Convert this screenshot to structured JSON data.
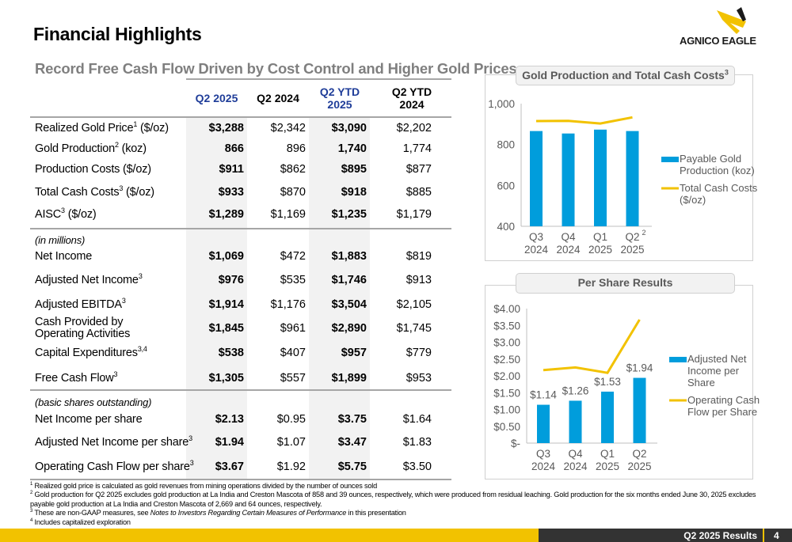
{
  "header": {
    "title": "Financial Highlights",
    "subtitle": "Record Free Cash Flow Driven by Cost Control and Higher Gold Prices",
    "logo_text": "AGNICO EAGLE"
  },
  "colors": {
    "accent_blue": "#1f3d99",
    "bar_blue": "#009ddc",
    "line_gold": "#f2c200",
    "dark": "#333333"
  },
  "table": {
    "columns": [
      "Q2 2025",
      "Q2 2024",
      "Q2 YTD 2025",
      "Q2 YTD 2024"
    ],
    "rows": [
      {
        "label": "Realized Gold Price",
        "sup": "1",
        "unit": " ($/oz)",
        "values": [
          "$3,288",
          "$2,342",
          "$3,090",
          "$2,202"
        ]
      },
      {
        "label": "Gold Production",
        "sup": "2",
        "unit": " (koz)",
        "values": [
          "866",
          "896",
          "1,740",
          "1,774"
        ]
      },
      {
        "label": "Production Costs ($/oz)",
        "sup": "",
        "unit": "",
        "values": [
          "$911",
          "$862",
          "$895",
          "$877"
        ]
      },
      {
        "label": "Total Cash Costs",
        "sup": "3",
        "unit": " ($/oz)",
        "values": [
          "$933",
          "$870",
          "$918",
          "$885"
        ]
      },
      {
        "label": "AISC",
        "sup": "3",
        "unit": " ($/oz)",
        "values": [
          "$1,289",
          "$1,169",
          "$1,235",
          "$1,179"
        ]
      },
      {
        "section": "(in millions)"
      },
      {
        "label": "Net Income",
        "sup": "",
        "unit": "",
        "values": [
          "$1,069",
          "$472",
          "$1,883",
          "$819"
        ]
      },
      {
        "label": "Adjusted Net Income",
        "sup": "3",
        "unit": "",
        "values": [
          "$976",
          "$535",
          "$1,746",
          "$913"
        ]
      },
      {
        "label": "Adjusted EBITDA",
        "sup": "3",
        "unit": "",
        "values": [
          "$1,914",
          "$1,176",
          "$3,504",
          "$2,105"
        ]
      },
      {
        "label": "Cash Provided by Operating Activities",
        "sup": "",
        "unit": "",
        "values": [
          "$1,845",
          "$961",
          "$2,890",
          "$1,745"
        ]
      },
      {
        "label": "Capital Expenditures",
        "sup": "3,4",
        "unit": "",
        "values": [
          "$538",
          "$407",
          "$957",
          "$779"
        ]
      },
      {
        "label": "Free Cash Flow",
        "sup": "3",
        "unit": "",
        "values": [
          "$1,305",
          "$557",
          "$1,899",
          "$953"
        ]
      },
      {
        "section": "(basic shares outstanding)"
      },
      {
        "label": "Net Income per share",
        "sup": "",
        "unit": "",
        "values": [
          "$2.13",
          "$0.95",
          "$3.75",
          "$1.64"
        ]
      },
      {
        "label": "Adjusted Net Income per share",
        "sup": "3",
        "unit": "",
        "values": [
          "$1.94",
          "$1.07",
          "$3.47",
          "$1.83"
        ]
      },
      {
        "label": "Operating Cash Flow per share",
        "sup": "3",
        "unit": "",
        "values": [
          "$3.67",
          "$1.92",
          "$5.75",
          "$3.50"
        ]
      }
    ]
  },
  "chart_data": [
    {
      "type": "bar",
      "title": "Gold Production and Total Cash Costs",
      "title_sup": "3",
      "categories": [
        "Q3 2024",
        "Q4 2024",
        "Q1 2025",
        "Q2 2025"
      ],
      "category_lines": [
        [
          "Q3",
          "2024"
        ],
        [
          "Q4",
          "2024"
        ],
        [
          "Q1",
          "2025"
        ],
        [
          "Q2",
          "2025"
        ]
      ],
      "category_sups": [
        "",
        "",
        "",
        "2"
      ],
      "ylim": [
        400,
        1000
      ],
      "yticks": [
        "400",
        "600",
        "800",
        "1,000"
      ],
      "ytick_values": [
        400,
        600,
        800,
        1000
      ],
      "series": [
        {
          "name": "Payable Gold Production (koz)",
          "legend_lines": [
            "Payable Gold",
            "Production (koz)"
          ],
          "kind": "bar",
          "values": [
            866,
            854,
            873,
            866
          ]
        },
        {
          "name": "Total Cash Costs ($/oz)",
          "legend_lines": [
            "Total Cash Costs",
            "($/oz)"
          ],
          "kind": "line",
          "values": [
            915,
            916,
            903,
            933
          ]
        }
      ],
      "legend": "right",
      "grid": false
    },
    {
      "type": "bar",
      "title": "Per Share Results",
      "categories": [
        "Q3 2024",
        "Q4 2024",
        "Q1 2025",
        "Q2 2025"
      ],
      "category_lines": [
        [
          "Q3",
          "2024"
        ],
        [
          "Q4",
          "2024"
        ],
        [
          "Q1",
          "2025"
        ],
        [
          "Q2",
          "2025"
        ]
      ],
      "ylim": [
        0,
        4
      ],
      "yticks": [
        "$-",
        "$0.50",
        "$1.00",
        "$1.50",
        "$2.00",
        "$2.50",
        "$3.00",
        "$3.50",
        "$4.00"
      ],
      "ytick_values": [
        0,
        0.5,
        1,
        1.5,
        2,
        2.5,
        3,
        3.5,
        4
      ],
      "series": [
        {
          "name": "Adjusted Net Income per Share",
          "legend_lines": [
            "Adjusted Net",
            "Income per",
            "Share"
          ],
          "kind": "bar",
          "values": [
            1.14,
            1.26,
            1.53,
            1.94
          ],
          "labels": [
            "$1.14",
            "$1.26",
            "$1.53",
            "$1.94"
          ]
        },
        {
          "name": "Operating Cash Flow per Share",
          "legend_lines": [
            "Operating Cash",
            "Flow per Share"
          ],
          "kind": "line",
          "values": [
            2.17,
            2.25,
            2.09,
            3.67
          ]
        }
      ],
      "legend": "right",
      "grid": false
    }
  ],
  "footnotes": {
    "f1_num": "1",
    "f1": "Realized gold price is calculated as gold revenues from mining operations divided by the number of ounces sold",
    "f2_num": "2",
    "f2": "Gold production for Q2 2025 excludes gold production at La India and Creston Mascota of 858 and 39 ounces, respectively, which were produced from residual leaching. Gold production for the six months ended June 30, 2025 excludes payable gold production at La India and Creston Mascota of 2,669 and 64 ounces, respectively.",
    "f3_num": "3",
    "f3_a": "These are non-GAAP measures, see ",
    "f3_b": "Notes to Investors Regarding Certain Measures of Performance",
    "f3_c": " in this presentation",
    "f4_num": "4",
    "f4": "Includes capitalized exploration"
  },
  "footer": {
    "label": "Q2 2025 Results",
    "page": "4"
  }
}
